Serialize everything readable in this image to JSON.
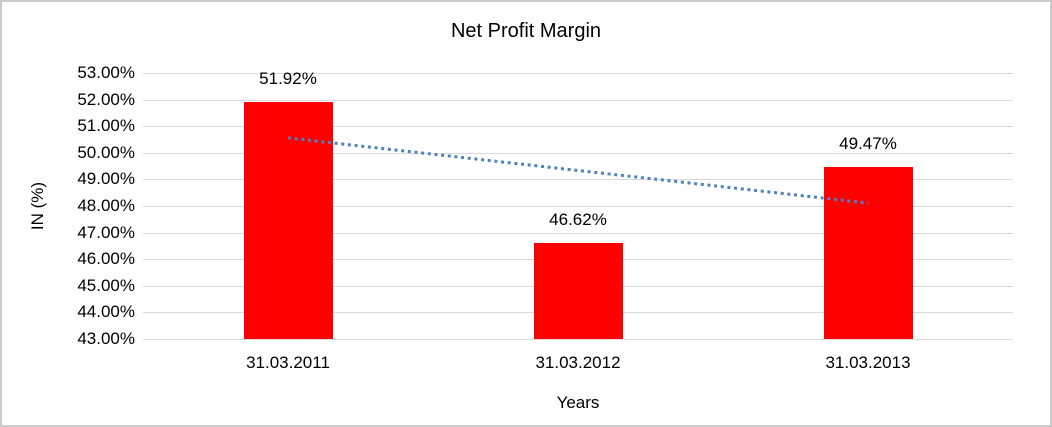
{
  "frame": {
    "background": "#FFFFFF",
    "border_color": "#CCCCCC"
  },
  "chart_data": {
    "type": "bar",
    "title": "Net Profit Margin",
    "xlabel": "Years",
    "ylabel": "IN (%)",
    "categories": [
      "31.03.2011",
      "31.03.2012",
      "31.03.2013"
    ],
    "values": [
      51.92,
      46.62,
      49.47
    ],
    "data_labels": [
      "51.92%",
      "46.62%",
      "49.47%"
    ],
    "y_ticks": [
      "53.00%",
      "52.00%",
      "51.00%",
      "50.00%",
      "49.00%",
      "48.00%",
      "47.00%",
      "46.00%",
      "45.00%",
      "44.00%",
      "43.00%"
    ],
    "ylim": [
      43,
      53
    ],
    "grid": true,
    "legend": "none",
    "bar_color": "#FF0000",
    "gridline_color": "#D9D9D9",
    "text_color": "#000000",
    "trendline": {
      "type": "linear",
      "style": "dotted",
      "color": "#4F81BD",
      "start_value": 50.56,
      "end_value": 48.11
    }
  }
}
